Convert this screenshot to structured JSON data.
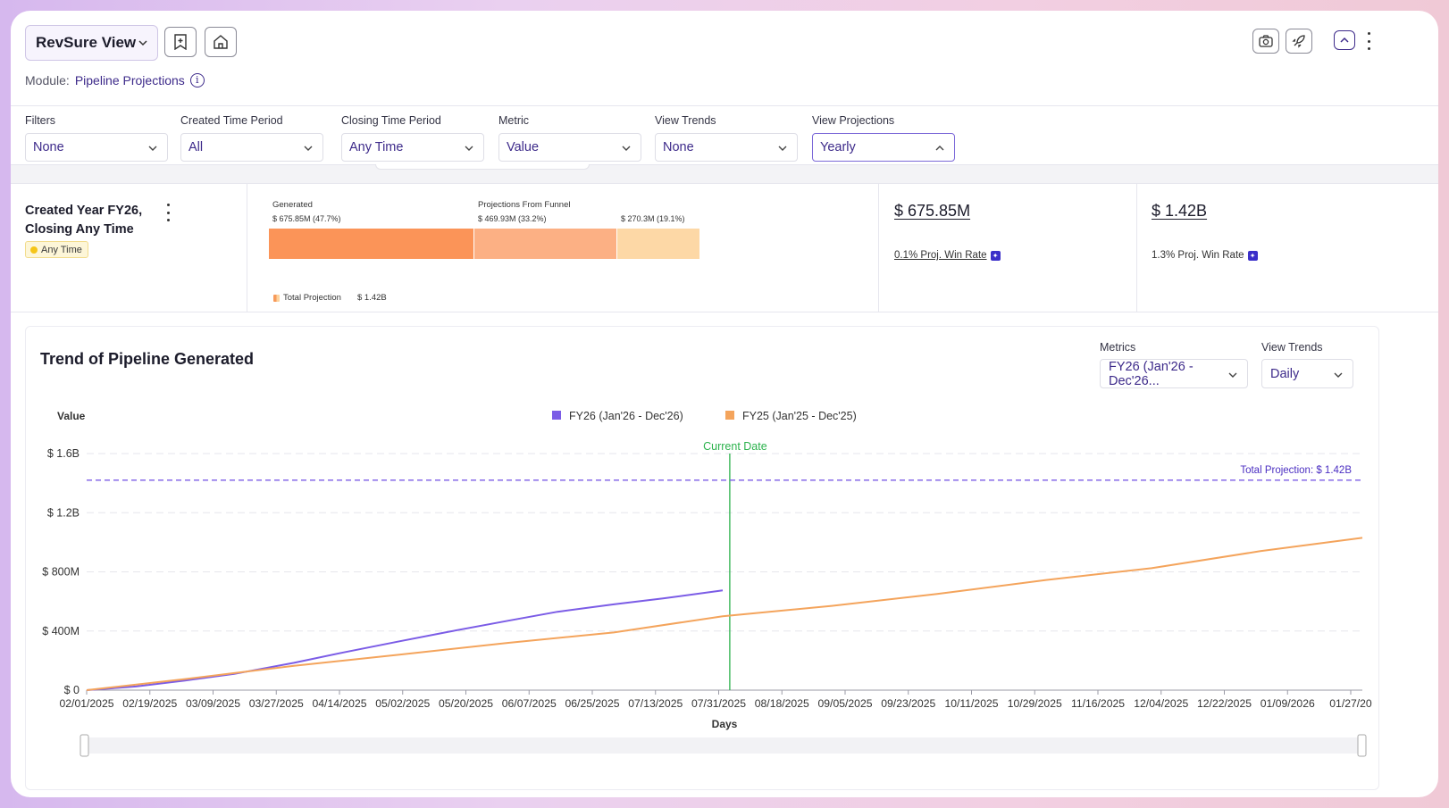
{
  "header": {
    "view_title": "RevSure View",
    "module_label": "Module:",
    "module_value": "Pipeline Projections",
    "info_glyph": "i"
  },
  "filters": [
    {
      "label": "Filters",
      "value": "None"
    },
    {
      "label": "Created Time Period",
      "value": "All"
    },
    {
      "label": "Closing Time Period",
      "value": "Any Time"
    },
    {
      "label": "Metric",
      "value": "Value"
    },
    {
      "label": "View Trends",
      "value": "None"
    },
    {
      "label": "View Projections",
      "value": "Yearly"
    }
  ],
  "summary": {
    "title": "Created Year FY26, Closing Any Time",
    "badge": "Any Time",
    "generated_label": "Generated",
    "generated_value": "$ 675.85M (47.7%)",
    "funnel_label": "Projections From Funnel",
    "funnel_value": "$ 469.93M (33.2%)",
    "third_value": "$ 270.3M (19.1%)",
    "total_label": "Total Projection",
    "total_value": "$ 1.42B",
    "shares": [
      47.7,
      33.2,
      19.1
    ],
    "card1_value": "$ 675.85M",
    "card1_rate": "0.1% Proj. Win Rate",
    "card2_value": "$ 1.42B",
    "card2_rate": "1.3% Proj. Win Rate"
  },
  "trend": {
    "title": "Trend of Pipeline Generated",
    "metrics_label": "Metrics",
    "metrics_value": "FY26 (Jan'26 - Dec'26...",
    "view_trends_label": "View Trends",
    "view_trends_value": "Daily"
  },
  "colors": {
    "accent": "#3d2a8a",
    "fy26": "#7b5ce6",
    "fy25": "#f4a45c",
    "generated": "#fb9458",
    "funnel": "#fcb084",
    "remaining": "#fdd8a6",
    "current_date": "#2bb24c",
    "projection": "#7b5ce6"
  },
  "chart_data": {
    "type": "line",
    "ylabel": "Value",
    "xlabel": "Days",
    "y_tick_labels": [
      "$ 0",
      "$ 400M",
      "$ 800M",
      "$ 1.2B",
      "$ 1.6B"
    ],
    "y_ticks": [
      0,
      400,
      800,
      1200,
      1600
    ],
    "ylim": [
      0,
      1600
    ],
    "x_tick_labels": [
      "02/01/2025",
      "02/19/2025",
      "03/09/2025",
      "03/27/2025",
      "04/14/2025",
      "05/02/2025",
      "05/20/2025",
      "06/07/2025",
      "06/25/2025",
      "07/13/2025",
      "07/31/2025",
      "08/18/2025",
      "09/05/2025",
      "09/23/2025",
      "10/11/2025",
      "10/29/2025",
      "11/16/2025",
      "12/04/2025",
      "12/22/2025",
      "01/09/2026",
      "01/27/20"
    ],
    "x_domain": [
      "02/01/2025",
      "01/30/2026"
    ],
    "legend_position": "top-center",
    "grid": true,
    "series": [
      {
        "name": "FY26 (Jan'26 - Dec'26)",
        "x": [
          "02/01/2025",
          "02/15/2025",
          "03/01/2025",
          "03/15/2025",
          "04/01/2025",
          "04/15/2025",
          "05/01/2025",
          "05/15/2025",
          "06/01/2025",
          "06/15/2025",
          "07/01/2025",
          "07/15/2025",
          "08/01/2025"
        ],
        "y": [
          0,
          25,
          65,
          110,
          185,
          255,
          330,
          395,
          470,
          530,
          580,
          620,
          675
        ]
      },
      {
        "name": "FY25 (Jan'25 - Dec'25)",
        "x": [
          "02/01/2025",
          "03/01/2025",
          "04/01/2025",
          "05/01/2025",
          "06/01/2025",
          "07/01/2025",
          "08/01/2025",
          "09/01/2025",
          "10/01/2025",
          "11/01/2025",
          "12/01/2025",
          "01/01/2026",
          "01/30/2026"
        ],
        "y": [
          0,
          75,
          165,
          240,
          320,
          390,
          500,
          570,
          650,
          745,
          825,
          940,
          1030
        ]
      }
    ],
    "annotations": [
      {
        "type": "vline",
        "x": "08/03/2025",
        "label": "Current Date"
      },
      {
        "type": "hline",
        "y": 1420,
        "label": "Total Projection: $ 1.42B"
      }
    ]
  }
}
